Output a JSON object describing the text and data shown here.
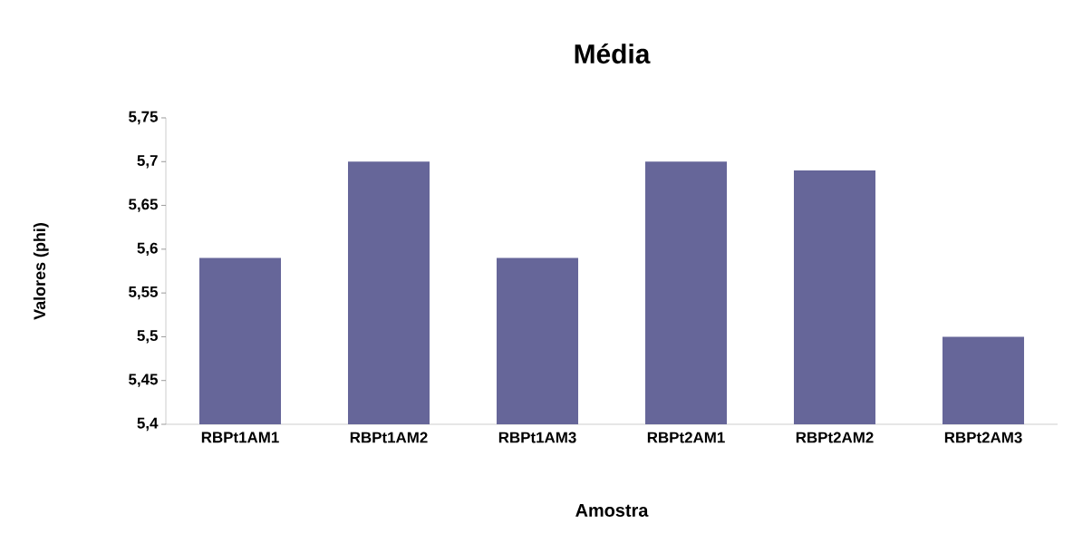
{
  "chart_data": {
    "type": "bar",
    "title": "Média",
    "xlabel": "Amostra",
    "ylabel": "Valores (phi)",
    "categories": [
      "RBPt1AM1",
      "RBPt1AM2",
      "RBPt1AM3",
      "RBPt2AM1",
      "RBPt2AM2",
      "RBPt2AM3"
    ],
    "values": [
      5.59,
      5.7,
      5.59,
      5.7,
      5.69,
      5.5
    ],
    "color": "#666699",
    "ylim": [
      5.4,
      5.75
    ],
    "yticks": [
      {
        "value": 5.4,
        "label": "5,4"
      },
      {
        "value": 5.45,
        "label": "5,45"
      },
      {
        "value": 5.5,
        "label": "5,5"
      },
      {
        "value": 5.55,
        "label": "5,55"
      },
      {
        "value": 5.6,
        "label": "5,6"
      },
      {
        "value": 5.65,
        "label": "5,65"
      },
      {
        "value": 5.7,
        "label": "5,7"
      },
      {
        "value": 5.75,
        "label": "5,75"
      }
    ],
    "grid": false
  }
}
